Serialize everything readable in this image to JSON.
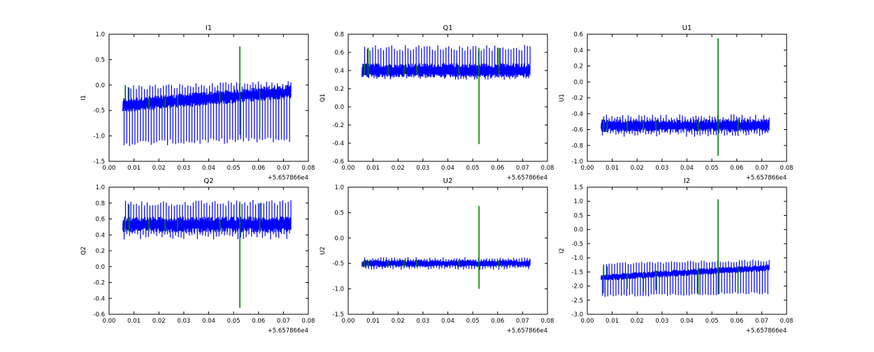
{
  "figure": {
    "background": "#ffffff",
    "noise_color": "#0000ff",
    "spike_color": "#008000"
  },
  "chart_data": [
    {
      "type": "line",
      "title": "I1",
      "ylabel": "I1",
      "xlim": [
        0.0,
        0.08
      ],
      "ylim": [
        -1.5,
        1.0
      ],
      "xticks": [
        "0.00",
        "0.01",
        "0.02",
        "0.03",
        "0.04",
        "0.05",
        "0.06",
        "0.07",
        "0.08"
      ],
      "yticks": [
        "-1.5",
        "-1.0",
        "-0.5",
        "0.0",
        "0.5",
        "1.0"
      ],
      "x_offset_label": "+5.657866e4",
      "grid": false,
      "series": [
        {
          "color": "#0000ff",
          "x_range": [
            0.0055,
            0.073
          ],
          "baseline_start": -0.4,
          "baseline_end": -0.13,
          "band": 0.14,
          "low_spike": -1.15,
          "high_spike": -0.05
        },
        {
          "color": "#008000",
          "x": [
            0.0065,
            0.008,
            0.016,
            0.0225,
            0.0275,
            0.0445,
            0.0525,
            0.0605
          ],
          "y_low": [
            -0.3,
            -0.3,
            -0.45,
            -0.45,
            -0.45,
            -0.35,
            -0.98,
            -0.9
          ],
          "y_high": [
            0.0,
            -0.05,
            -0.25,
            -0.25,
            -0.2,
            -0.15,
            0.76,
            -0.1
          ]
        }
      ]
    },
    {
      "type": "line",
      "title": "Q1",
      "ylabel": "Q1",
      "xlim": [
        0.0,
        0.08
      ],
      "ylim": [
        -0.6,
        0.8
      ],
      "xticks": [
        "0.00",
        "0.01",
        "0.02",
        "0.03",
        "0.04",
        "0.05",
        "0.06",
        "0.07",
        "0.08"
      ],
      "yticks": [
        "-0.6",
        "-0.4",
        "-0.2",
        "0.0",
        "0.2",
        "0.4",
        "0.6",
        "0.8"
      ],
      "x_offset_label": "+5.657866e4",
      "grid": false,
      "series": [
        {
          "color": "#0000ff",
          "x_range": [
            0.0055,
            0.073
          ],
          "baseline_start": 0.4,
          "baseline_end": 0.4,
          "band": 0.08,
          "low_spike": 0.33,
          "high_spike": 0.65
        },
        {
          "color": "#008000",
          "x": [
            0.0065,
            0.008,
            0.016,
            0.0225,
            0.0275,
            0.0445,
            0.0525,
            0.0605
          ],
          "y_low": [
            0.35,
            0.35,
            0.35,
            0.35,
            0.36,
            0.36,
            -0.41,
            0.36
          ],
          "y_high": [
            0.47,
            0.65,
            0.46,
            0.46,
            0.45,
            0.46,
            0.65,
            0.65
          ]
        }
      ]
    },
    {
      "type": "line",
      "title": "U1",
      "ylabel": "U1",
      "xlim": [
        0.0,
        0.08
      ],
      "ylim": [
        -1.0,
        0.6
      ],
      "xticks": [
        "0.00",
        "0.01",
        "0.02",
        "0.03",
        "0.04",
        "0.05",
        "0.06",
        "0.07",
        "0.08"
      ],
      "yticks": [
        "-1.0",
        "-0.8",
        "-0.6",
        "-0.4",
        "-0.2",
        "0.0",
        "0.2",
        "0.4",
        "0.6"
      ],
      "x_offset_label": "+5.657866e4",
      "grid": false,
      "series": [
        {
          "color": "#0000ff",
          "x_range": [
            0.0055,
            0.073
          ],
          "baseline_start": -0.55,
          "baseline_end": -0.55,
          "band": 0.08,
          "low_spike": -0.66,
          "high_spike": -0.44
        },
        {
          "color": "#008000",
          "x": [
            0.0065,
            0.008,
            0.016,
            0.0225,
            0.0275,
            0.0445,
            0.0525,
            0.0605
          ],
          "y_low": [
            -0.63,
            -0.62,
            -0.61,
            -0.61,
            -0.61,
            -0.62,
            -0.93,
            -0.64
          ],
          "y_high": [
            -0.5,
            -0.49,
            -0.49,
            -0.49,
            -0.48,
            -0.48,
            0.55,
            -0.46
          ]
        }
      ]
    },
    {
      "type": "line",
      "title": "Q2",
      "ylabel": "Q2",
      "xlim": [
        0.0,
        0.08
      ],
      "ylim": [
        -0.6,
        1.0
      ],
      "xticks": [
        "0.00",
        "0.01",
        "0.02",
        "0.03",
        "0.04",
        "0.05",
        "0.06",
        "0.07",
        "0.08"
      ],
      "yticks": [
        "-0.6",
        "-0.4",
        "-0.2",
        "0.0",
        "0.2",
        "0.4",
        "0.6",
        "0.8",
        "1.0"
      ],
      "x_offset_label": "+5.657866e4",
      "grid": false,
      "series": [
        {
          "color": "#0000ff",
          "x_range": [
            0.0055,
            0.073
          ],
          "baseline_start": 0.53,
          "baseline_end": 0.53,
          "band": 0.1,
          "low_spike": 0.38,
          "high_spike": 0.8
        },
        {
          "color": "#008000",
          "x": [
            0.0065,
            0.008,
            0.016,
            0.0225,
            0.0275,
            0.0445,
            0.0525,
            0.0605
          ],
          "y_low": [
            0.44,
            0.44,
            0.44,
            0.44,
            0.44,
            0.44,
            -0.52,
            0.44
          ],
          "y_high": [
            0.6,
            0.78,
            0.6,
            0.6,
            0.6,
            0.6,
            0.82,
            0.8
          ]
        }
      ]
    },
    {
      "type": "line",
      "title": "U2",
      "ylabel": "U2",
      "xlim": [
        0.0,
        0.08
      ],
      "ylim": [
        -1.5,
        1.0
      ],
      "xticks": [
        "0.00",
        "0.01",
        "0.02",
        "0.03",
        "0.04",
        "0.05",
        "0.06",
        "0.07",
        "0.08"
      ],
      "yticks": [
        "-1.5",
        "-1.0",
        "-0.5",
        "0.0",
        "0.5",
        "1.0"
      ],
      "x_offset_label": "+5.657866e4",
      "grid": false,
      "series": [
        {
          "color": "#0000ff",
          "x_range": [
            0.0055,
            0.073
          ],
          "baseline_start": -0.5,
          "baseline_end": -0.5,
          "band": 0.07,
          "low_spike": -0.6,
          "high_spike": -0.4
        },
        {
          "color": "#008000",
          "x": [
            0.0065,
            0.008,
            0.016,
            0.0225,
            0.0275,
            0.0445,
            0.0525,
            0.0605
          ],
          "y_low": [
            -0.57,
            -0.57,
            -0.57,
            -0.57,
            -0.57,
            -0.57,
            -1.0,
            -0.57
          ],
          "y_high": [
            -0.44,
            -0.44,
            -0.44,
            -0.44,
            -0.44,
            -0.44,
            0.63,
            -0.44
          ]
        }
      ]
    },
    {
      "type": "line",
      "title": "I2",
      "ylabel": "I2",
      "xlim": [
        0.0,
        0.08
      ],
      "ylim": [
        -3.0,
        1.5
      ],
      "xticks": [
        "0.00",
        "0.01",
        "0.02",
        "0.03",
        "0.04",
        "0.05",
        "0.06",
        "0.07",
        "0.08"
      ],
      "yticks": [
        "-3.0",
        "-2.5",
        "-2.0",
        "-1.5",
        "-1.0",
        "-0.5",
        "0.0",
        "0.5",
        "1.0",
        "1.5"
      ],
      "x_offset_label": "+5.657866e4",
      "grid": false,
      "series": [
        {
          "color": "#0000ff",
          "x_range": [
            0.0055,
            0.073
          ],
          "baseline_start": -1.7,
          "baseline_end": -1.35,
          "band": 0.12,
          "low_spike": -2.35,
          "high_spike": -1.2
        },
        {
          "color": "#008000",
          "x": [
            0.0065,
            0.008,
            0.016,
            0.0225,
            0.0275,
            0.0445,
            0.0525,
            0.0605
          ],
          "y_low": [
            -2.25,
            -1.7,
            -2.1,
            -2.2,
            -2.15,
            -2.3,
            -2.3,
            -2.2
          ],
          "y_high": [
            -1.3,
            -1.3,
            -1.55,
            -1.5,
            -1.45,
            -1.35,
            1.07,
            -1.3
          ]
        }
      ]
    }
  ]
}
